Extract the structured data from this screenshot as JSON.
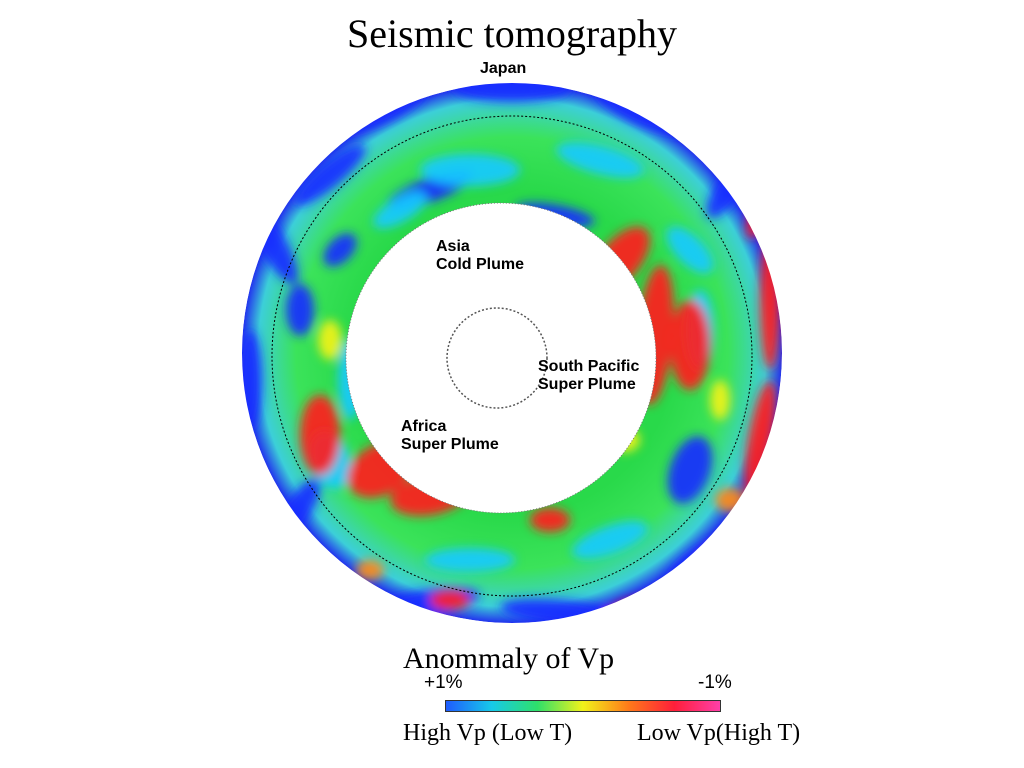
{
  "title": "Seismic tomography",
  "annotations": {
    "top": "Japan",
    "asia": [
      "Asia",
      "Cold Plume"
    ],
    "pacific": [
      "South Pacific",
      "Super Plume"
    ],
    "africa": [
      "Africa",
      "Super Plume"
    ]
  },
  "legend": {
    "title": "Anommaly of Vp",
    "left_tick": "+1%",
    "right_tick": "-1%",
    "left_caption": "High Vp (Low T)",
    "right_caption": "Low Vp(High T)",
    "colors": [
      "#1f5cff",
      "#17c9e8",
      "#2ee06a",
      "#f2f21a",
      "#ff7a1a",
      "#ff1f3a",
      "#ff3fa8"
    ]
  },
  "palette": {
    "fast_strong": "#1a2bff",
    "fast": "#17c9ff",
    "neutral": "#2ee02a",
    "slow_weak": "#f2f21a",
    "slow": "#ff8a1a",
    "slow_strong": "#ff1f1f"
  }
}
